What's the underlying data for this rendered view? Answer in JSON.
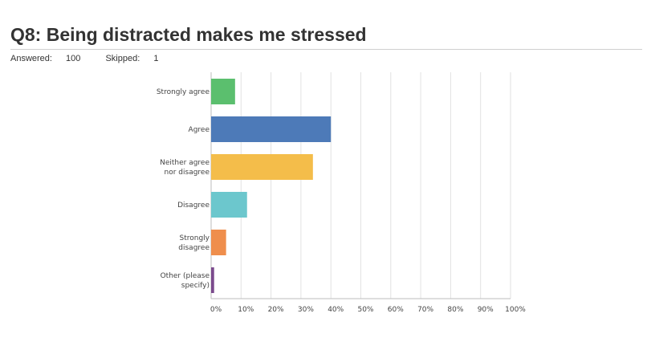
{
  "page": {
    "title": "Q8: Being distracted makes me stressed",
    "answered_label": "Answered:",
    "answered_value": "100",
    "skipped_label": "Skipped:",
    "skipped_value": "1"
  },
  "chart_data": {
    "type": "bar",
    "orientation": "horizontal",
    "categories": [
      [
        "Strongly agree"
      ],
      [
        "Agree"
      ],
      [
        "Neither agree",
        "nor disagree"
      ],
      [
        "Disagree"
      ],
      [
        "Strongly",
        "disagree"
      ],
      [
        "Other (please",
        "specify)"
      ]
    ],
    "values": [
      8,
      40,
      34,
      12,
      5,
      1
    ],
    "colors": [
      "#5bbf6e",
      "#4d7ab8",
      "#f4bd4a",
      "#6cc7cd",
      "#ef8e4c",
      "#7b4a8d"
    ],
    "xlim": [
      0,
      100
    ],
    "xticks": [
      "0%",
      "10%",
      "20%",
      "30%",
      "40%",
      "50%",
      "60%",
      "70%",
      "80%",
      "90%",
      "100%"
    ],
    "grid": true
  }
}
